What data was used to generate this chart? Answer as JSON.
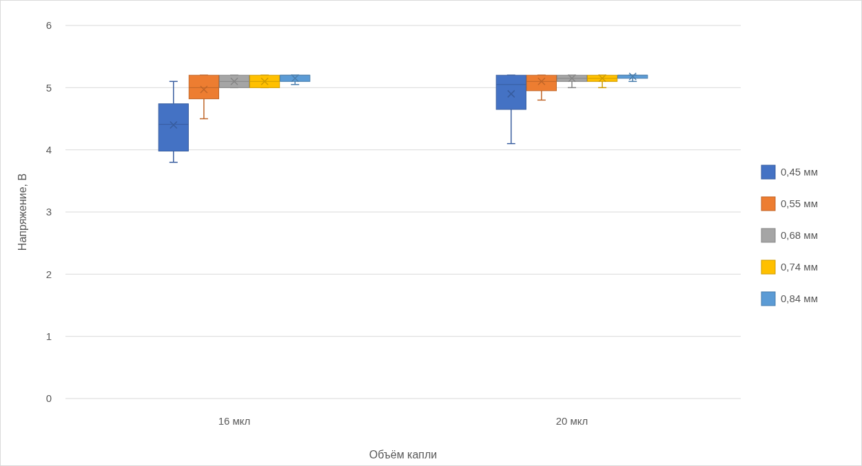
{
  "chart_data": {
    "type": "box",
    "xlabel": "Объём капли",
    "ylabel": "Напряжение, В",
    "categories": [
      "16 мкл",
      "20 мкл"
    ],
    "ylim": [
      0,
      6
    ],
    "yticks": [
      0,
      1,
      2,
      3,
      4,
      5,
      6
    ],
    "grid": "y",
    "legend": "right",
    "series": [
      {
        "name": "0,45 мм",
        "color": "#4472c4",
        "boxes": [
          {
            "low": 3.8,
            "q1": 3.98,
            "median": 4.41,
            "q3": 4.74,
            "high": 5.1,
            "mean": 4.4
          },
          {
            "low": 4.1,
            "q1": 4.65,
            "median": 5.05,
            "q3": 5.2,
            "high": 5.2,
            "mean": 4.9
          }
        ]
      },
      {
        "name": "0,55 мм",
        "color": "#ed7d31",
        "boxes": [
          {
            "low": 4.5,
            "q1": 4.82,
            "median": 5.0,
            "q3": 5.2,
            "high": 5.2,
            "mean": 4.97
          },
          {
            "low": 4.8,
            "q1": 4.95,
            "median": 5.1,
            "q3": 5.2,
            "high": 5.2,
            "mean": 5.1
          }
        ]
      },
      {
        "name": "0,68 мм",
        "color": "#a5a5a5",
        "boxes": [
          {
            "low": 5.0,
            "q1": 5.0,
            "median": 5.1,
            "q3": 5.2,
            "high": 5.2,
            "mean": 5.1
          },
          {
            "low": 5.0,
            "q1": 5.1,
            "median": 5.15,
            "q3": 5.2,
            "high": 5.2,
            "mean": 5.15
          }
        ]
      },
      {
        "name": "0,74 мм",
        "color": "#ffc000",
        "boxes": [
          {
            "low": 5.0,
            "q1": 5.0,
            "median": 5.1,
            "q3": 5.2,
            "high": 5.2,
            "mean": 5.1
          },
          {
            "low": 5.0,
            "q1": 5.1,
            "median": 5.15,
            "q3": 5.2,
            "high": 5.2,
            "mean": 5.15
          }
        ]
      },
      {
        "name": "0,84 мм",
        "color": "#5b9bd5",
        "boxes": [
          {
            "low": 5.05,
            "q1": 5.1,
            "median": 5.2,
            "q3": 5.2,
            "high": 5.2,
            "mean": 5.15
          },
          {
            "low": 5.1,
            "q1": 5.15,
            "median": 5.2,
            "q3": 5.2,
            "high": 5.2,
            "mean": 5.18
          }
        ]
      }
    ]
  }
}
